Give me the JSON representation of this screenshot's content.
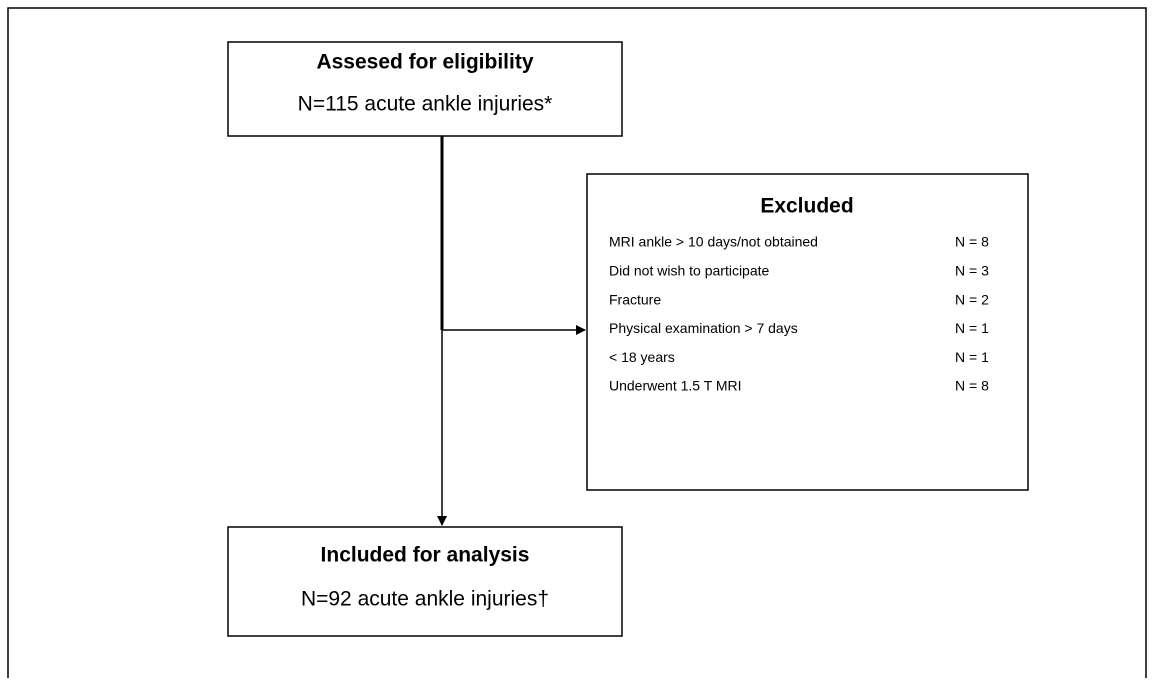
{
  "nodes": [
    {
      "title": "Assesed for eligibility",
      "subtitle": "N=115 acute ankle injuries*"
    },
    {
      "title": "Included for analysis",
      "subtitle": "N=92 acute ankle injuries†"
    }
  ],
  "excluded": {
    "title": "Excluded",
    "rows": [
      [
        "MRI ankle > 10 days/not obtained",
        "N = 8"
      ],
      [
        "Did not wish to participate",
        "N = 3"
      ],
      [
        "Fracture",
        "N = 2"
      ],
      [
        "Physical examination > 7 days",
        "N = 1"
      ],
      [
        "< 18 years",
        "N = 1"
      ],
      [
        "Underwent 1.5 T MRI",
        "N = 8"
      ]
    ]
  }
}
